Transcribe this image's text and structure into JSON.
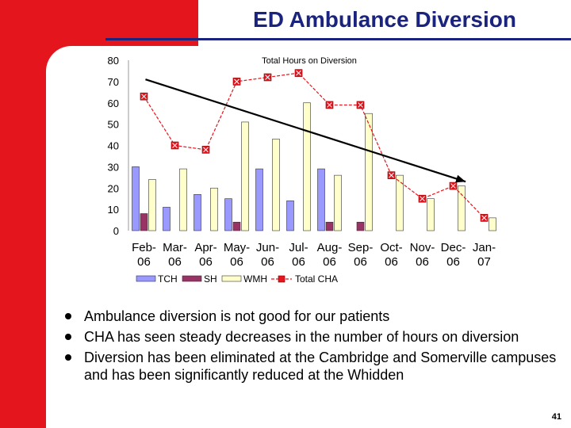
{
  "slide": {
    "title": "ED Ambulance Diversion",
    "page_number": "41",
    "bullets": [
      "Ambulance diversion is not good for our patients",
      "CHA has seen steady decreases in the number of hours on diversion",
      "Diversion has been eliminated at the Cambridge and Somerville campuses and has been significantly reduced at the Whidden"
    ]
  },
  "colors": {
    "accent_red": "#e5151e",
    "title_blue": "#1a237e",
    "tch": "#9999ff",
    "sh": "#993366",
    "wmh": "#ffffcc",
    "total_line": "#e5151e"
  },
  "chart_data": {
    "type": "bar",
    "title": "Total Hours on Diversion",
    "categories": [
      "Feb-06",
      "Mar-06",
      "Apr-06",
      "May-06",
      "Jun-06",
      "Jul-06",
      "Aug-06",
      "Sep-06",
      "Oct-06",
      "Nov-06",
      "Dec-06",
      "Jan-07"
    ],
    "series": [
      {
        "name": "TCH",
        "type": "bar",
        "values": [
          30,
          11,
          17,
          15,
          29,
          14,
          29,
          0,
          0,
          0,
          0,
          0
        ]
      },
      {
        "name": "SH",
        "type": "bar",
        "values": [
          8,
          0,
          0,
          4,
          0,
          0,
          4,
          4,
          0,
          0,
          0,
          0
        ]
      },
      {
        "name": "WMH",
        "type": "bar",
        "values": [
          24,
          29,
          20,
          51,
          43,
          60,
          26,
          55,
          26,
          15,
          21,
          6
        ]
      },
      {
        "name": "Total CHA",
        "type": "line",
        "values": [
          63,
          40,
          38,
          70,
          72,
          74,
          59,
          59,
          26,
          15,
          21,
          6
        ]
      }
    ],
    "ylim": [
      0,
      80
    ],
    "yticks": [
      0,
      10,
      20,
      30,
      40,
      50,
      60,
      70,
      80
    ],
    "trend_arrow": {
      "from": {
        "x_index": 0.55,
        "y": 71
      },
      "to": {
        "x_index": 10.9,
        "y": 23
      }
    },
    "legend_position": "bottom"
  }
}
